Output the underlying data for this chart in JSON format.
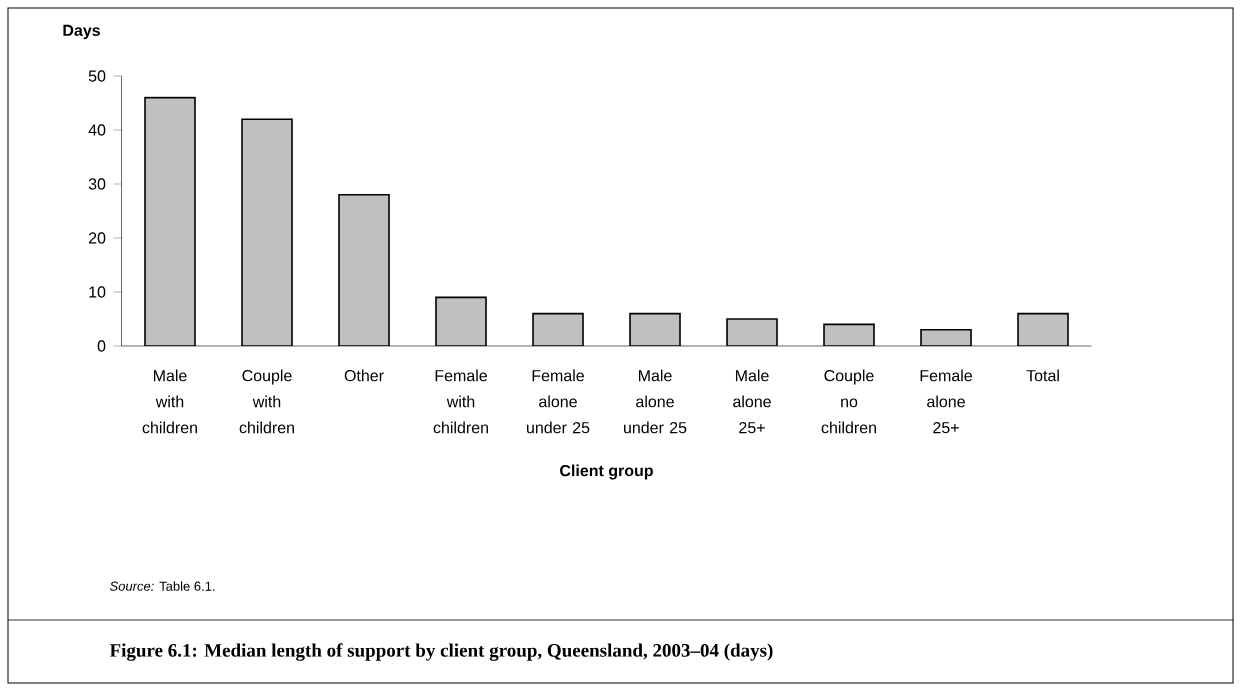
{
  "chart_data": {
    "type": "bar",
    "title": "Figure 6.1: Median length of support by client group, Queensland, 2003–04 (days)",
    "xlabel": "Client group",
    "ylabel": "Days",
    "categories": [
      "Male with children",
      "Couple with children",
      "Other",
      "Female with children",
      "Female alone under 25",
      "Male alone under 25",
      "Male alone 25+",
      "Couple no children",
      "Female alone 25+",
      "Total"
    ],
    "values": [
      46,
      42,
      28,
      9,
      6,
      6,
      5,
      4,
      3,
      6
    ],
    "color": "#c0c0c0",
    "ylim": [
      0,
      50
    ],
    "yticks": [
      0,
      10,
      20,
      30,
      40,
      50
    ],
    "annotations": [
      "*Source:* Table 6.1."
    ]
  }
}
